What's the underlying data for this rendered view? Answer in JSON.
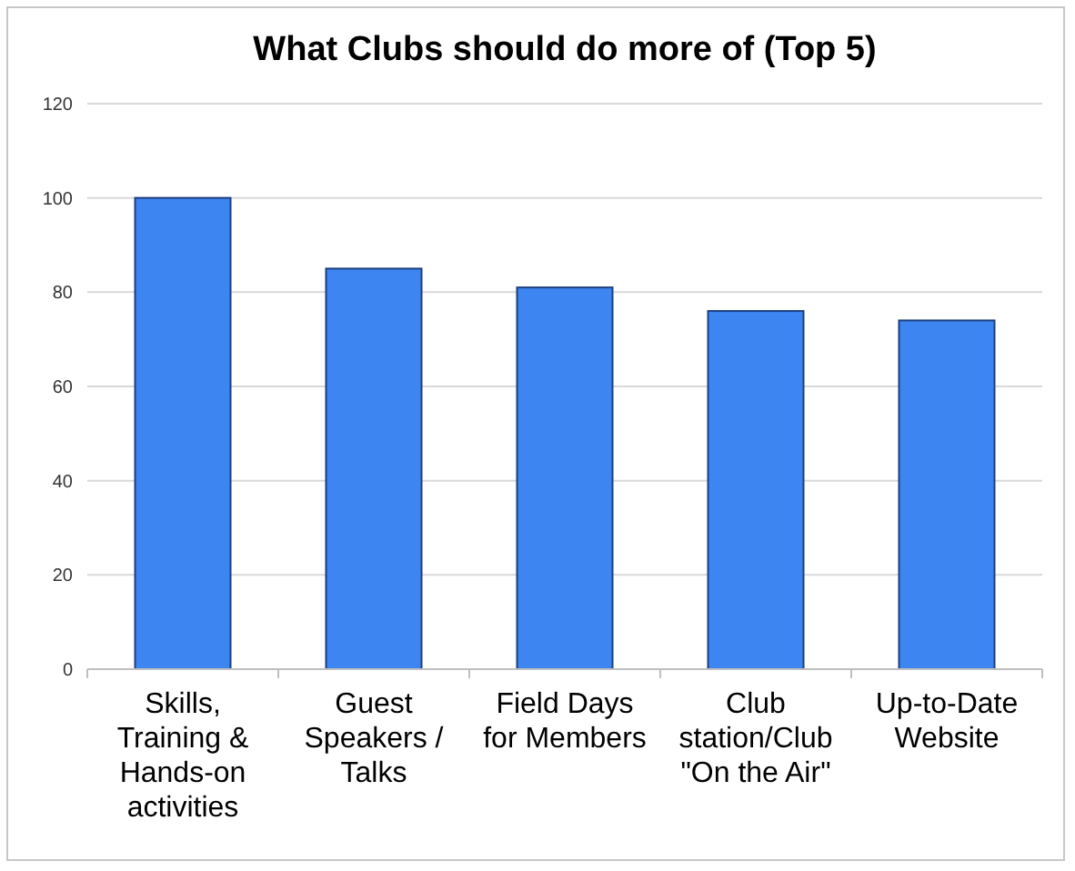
{
  "chart_data": {
    "type": "bar",
    "title": "What Clubs should do more of (Top 5)",
    "categories": [
      "Skills, Training & Hands-on activities",
      "Guest Speakers / Talks",
      "Field Days for Members",
      "Club station/Club \"On the Air\"",
      "Up-to-Date Website"
    ],
    "values": [
      100,
      85,
      81,
      76,
      74
    ],
    "color": "#3d85f0",
    "ylim": [
      0,
      120
    ],
    "yticks": [
      0,
      20,
      40,
      60,
      80,
      100,
      120
    ],
    "grid": "y"
  }
}
